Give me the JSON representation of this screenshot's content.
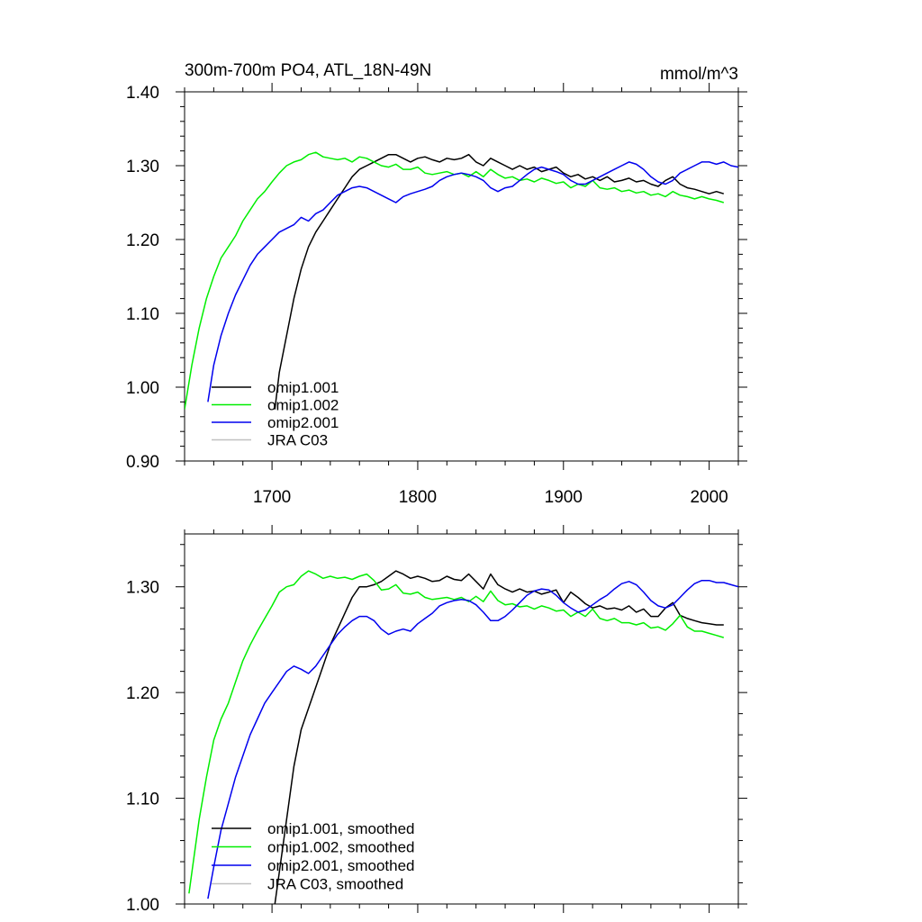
{
  "chart_data": [
    {
      "type": "line",
      "title": "300m-700m PO4, ATL_18N-49N",
      "units": "mmol/m^3",
      "xlim": [
        1640,
        2020
      ],
      "ylim": [
        0.9,
        1.4
      ],
      "xticks": [
        1700,
        1800,
        1900,
        2000
      ],
      "xtick_labels": [
        "1700",
        "1800",
        "1900",
        "2000"
      ],
      "yticks": [
        0.9,
        1.0,
        1.1,
        1.2,
        1.3,
        1.4
      ],
      "ytick_labels": [
        "0.90",
        "1.00",
        "1.10",
        "1.20",
        "1.30",
        "1.40"
      ],
      "legend_position": "bottom-left",
      "series": [
        {
          "name": "omip1.001",
          "color": "#000000",
          "x": [
            1702,
            1705,
            1710,
            1715,
            1720,
            1725,
            1730,
            1735,
            1740,
            1745,
            1750,
            1755,
            1760,
            1765,
            1770,
            1775,
            1780,
            1785,
            1790,
            1795,
            1800,
            1805,
            1810,
            1815,
            1820,
            1825,
            1830,
            1835,
            1840,
            1845,
            1850,
            1855,
            1860,
            1865,
            1870,
            1875,
            1880,
            1885,
            1890,
            1895,
            1900,
            1905,
            1910,
            1915,
            1920,
            1925,
            1930,
            1935,
            1940,
            1945,
            1950,
            1955,
            1960,
            1965,
            1970,
            1975,
            1980,
            1985,
            1990,
            1995,
            2000,
            2005,
            2010
          ],
          "y": [
            0.97,
            1.02,
            1.07,
            1.12,
            1.16,
            1.19,
            1.21,
            1.225,
            1.24,
            1.255,
            1.27,
            1.285,
            1.295,
            1.3,
            1.305,
            1.31,
            1.315,
            1.315,
            1.31,
            1.305,
            1.31,
            1.312,
            1.308,
            1.305,
            1.31,
            1.308,
            1.31,
            1.315,
            1.305,
            1.3,
            1.31,
            1.305,
            1.3,
            1.295,
            1.3,
            1.295,
            1.298,
            1.292,
            1.295,
            1.298,
            1.29,
            1.285,
            1.288,
            1.282,
            1.285,
            1.28,
            1.285,
            1.278,
            1.28,
            1.283,
            1.278,
            1.28,
            1.275,
            1.272,
            1.28,
            1.285,
            1.275,
            1.27,
            1.268,
            1.265,
            1.262,
            1.265,
            1.262
          ]
        },
        {
          "name": "omip1.002",
          "color": "#00ee00",
          "x": [
            1640,
            1645,
            1650,
            1655,
            1660,
            1665,
            1670,
            1675,
            1680,
            1685,
            1690,
            1695,
            1700,
            1705,
            1710,
            1715,
            1720,
            1725,
            1730,
            1735,
            1740,
            1745,
            1750,
            1755,
            1760,
            1765,
            1770,
            1775,
            1780,
            1785,
            1790,
            1795,
            1800,
            1805,
            1810,
            1815,
            1820,
            1825,
            1830,
            1835,
            1840,
            1845,
            1850,
            1855,
            1860,
            1865,
            1870,
            1875,
            1880,
            1885,
            1890,
            1895,
            1900,
            1905,
            1910,
            1915,
            1920,
            1925,
            1930,
            1935,
            1940,
            1945,
            1950,
            1955,
            1960,
            1965,
            1970,
            1975,
            1980,
            1985,
            1990,
            1995,
            2000,
            2005,
            2010
          ],
          "y": [
            0.97,
            1.03,
            1.08,
            1.12,
            1.15,
            1.175,
            1.19,
            1.205,
            1.225,
            1.24,
            1.255,
            1.265,
            1.278,
            1.29,
            1.3,
            1.305,
            1.308,
            1.315,
            1.318,
            1.312,
            1.31,
            1.308,
            1.31,
            1.305,
            1.312,
            1.31,
            1.305,
            1.3,
            1.298,
            1.302,
            1.295,
            1.295,
            1.298,
            1.29,
            1.288,
            1.29,
            1.292,
            1.288,
            1.29,
            1.285,
            1.292,
            1.285,
            1.295,
            1.288,
            1.283,
            1.285,
            1.28,
            1.282,
            1.278,
            1.283,
            1.28,
            1.276,
            1.278,
            1.27,
            1.275,
            1.272,
            1.28,
            1.27,
            1.268,
            1.27,
            1.265,
            1.267,
            1.263,
            1.265,
            1.26,
            1.262,
            1.258,
            1.265,
            1.26,
            1.258,
            1.255,
            1.258,
            1.255,
            1.253,
            1.25
          ]
        },
        {
          "name": "omip2.001",
          "color": "#0000ee",
          "x": [
            1656,
            1660,
            1665,
            1670,
            1675,
            1680,
            1685,
            1690,
            1695,
            1700,
            1705,
            1710,
            1715,
            1720,
            1725,
            1730,
            1735,
            1740,
            1745,
            1750,
            1755,
            1760,
            1765,
            1770,
            1775,
            1780,
            1785,
            1790,
            1795,
            1800,
            1805,
            1810,
            1815,
            1820,
            1825,
            1830,
            1835,
            1840,
            1845,
            1850,
            1855,
            1860,
            1865,
            1870,
            1875,
            1880,
            1885,
            1890,
            1895,
            1900,
            1905,
            1910,
            1915,
            1920,
            1925,
            1930,
            1935,
            1940,
            1945,
            1950,
            1955,
            1960,
            1965,
            1970,
            1975,
            1980,
            1985,
            1990,
            1995,
            2000,
            2005,
            2010,
            2015,
            2020
          ],
          "y": [
            0.98,
            1.03,
            1.07,
            1.1,
            1.125,
            1.145,
            1.165,
            1.18,
            1.19,
            1.2,
            1.21,
            1.215,
            1.22,
            1.23,
            1.225,
            1.235,
            1.24,
            1.25,
            1.26,
            1.265,
            1.27,
            1.272,
            1.27,
            1.265,
            1.26,
            1.255,
            1.25,
            1.258,
            1.262,
            1.265,
            1.268,
            1.272,
            1.28,
            1.285,
            1.288,
            1.29,
            1.288,
            1.285,
            1.28,
            1.27,
            1.265,
            1.27,
            1.272,
            1.28,
            1.288,
            1.295,
            1.298,
            1.295,
            1.292,
            1.288,
            1.28,
            1.275,
            1.275,
            1.28,
            1.285,
            1.29,
            1.295,
            1.3,
            1.305,
            1.302,
            1.295,
            1.285,
            1.278,
            1.275,
            1.28,
            1.29,
            1.295,
            1.3,
            1.305,
            1.305,
            1.302,
            1.305,
            1.3,
            1.298
          ]
        },
        {
          "name": "JRA C03",
          "color": "#c0c0c0",
          "x": [],
          "y": []
        }
      ]
    },
    {
      "type": "line",
      "title": "",
      "xlim": [
        1640,
        2020
      ],
      "ylim": [
        1.0,
        1.35
      ],
      "xticks": [
        1700,
        1800,
        1900,
        2000
      ],
      "xtick_labels": [],
      "yticks": [
        1.0,
        1.1,
        1.2,
        1.3
      ],
      "ytick_labels": [
        "1.00",
        "1.10",
        "1.20",
        "1.30"
      ],
      "legend_position": "bottom-left",
      "series": [
        {
          "name": "omip1.001, smoothed",
          "color": "#000000",
          "x": [
            1702,
            1705,
            1710,
            1715,
            1720,
            1725,
            1730,
            1735,
            1740,
            1745,
            1750,
            1755,
            1760,
            1765,
            1770,
            1775,
            1780,
            1785,
            1790,
            1795,
            1800,
            1805,
            1810,
            1815,
            1820,
            1825,
            1830,
            1835,
            1840,
            1845,
            1850,
            1855,
            1860,
            1865,
            1870,
            1875,
            1880,
            1885,
            1890,
            1895,
            1900,
            1905,
            1910,
            1915,
            1920,
            1925,
            1930,
            1935,
            1940,
            1945,
            1950,
            1955,
            1960,
            1965,
            1970,
            1975,
            1980,
            1985,
            1990,
            1995,
            2000,
            2005,
            2010
          ],
          "y": [
            1.0,
            1.03,
            1.08,
            1.13,
            1.165,
            1.185,
            1.205,
            1.225,
            1.245,
            1.26,
            1.275,
            1.29,
            1.3,
            1.3,
            1.302,
            1.305,
            1.31,
            1.315,
            1.312,
            1.308,
            1.31,
            1.308,
            1.305,
            1.306,
            1.31,
            1.307,
            1.306,
            1.312,
            1.305,
            1.298,
            1.312,
            1.302,
            1.298,
            1.295,
            1.298,
            1.295,
            1.296,
            1.293,
            1.295,
            1.297,
            1.285,
            1.295,
            1.29,
            1.284,
            1.28,
            1.282,
            1.279,
            1.28,
            1.278,
            1.282,
            1.276,
            1.279,
            1.272,
            1.272,
            1.28,
            1.285,
            1.273,
            1.27,
            1.268,
            1.266,
            1.265,
            1.264,
            1.264
          ]
        },
        {
          "name": "omip1.002, smoothed",
          "color": "#00ee00",
          "x": [
            1643,
            1645,
            1650,
            1655,
            1660,
            1665,
            1670,
            1675,
            1680,
            1685,
            1690,
            1695,
            1700,
            1705,
            1710,
            1715,
            1720,
            1725,
            1730,
            1735,
            1740,
            1745,
            1750,
            1755,
            1760,
            1765,
            1770,
            1775,
            1780,
            1785,
            1790,
            1795,
            1800,
            1805,
            1810,
            1815,
            1820,
            1825,
            1830,
            1835,
            1840,
            1845,
            1850,
            1855,
            1860,
            1865,
            1870,
            1875,
            1880,
            1885,
            1890,
            1895,
            1900,
            1905,
            1910,
            1915,
            1920,
            1925,
            1930,
            1935,
            1940,
            1945,
            1950,
            1955,
            1960,
            1965,
            1970,
            1975,
            1980,
            1985,
            1990,
            1995,
            2000,
            2005,
            2010
          ],
          "y": [
            1.01,
            1.03,
            1.08,
            1.12,
            1.155,
            1.175,
            1.19,
            1.21,
            1.23,
            1.245,
            1.258,
            1.27,
            1.282,
            1.295,
            1.3,
            1.302,
            1.31,
            1.315,
            1.312,
            1.308,
            1.31,
            1.308,
            1.309,
            1.307,
            1.31,
            1.312,
            1.306,
            1.297,
            1.298,
            1.302,
            1.294,
            1.293,
            1.295,
            1.29,
            1.288,
            1.289,
            1.29,
            1.288,
            1.29,
            1.286,
            1.291,
            1.286,
            1.296,
            1.287,
            1.283,
            1.284,
            1.281,
            1.282,
            1.279,
            1.282,
            1.28,
            1.277,
            1.278,
            1.272,
            1.276,
            1.272,
            1.279,
            1.27,
            1.268,
            1.27,
            1.266,
            1.266,
            1.264,
            1.266,
            1.261,
            1.262,
            1.259,
            1.265,
            1.273,
            1.262,
            1.258,
            1.258,
            1.256,
            1.254,
            1.252
          ]
        },
        {
          "name": "omip2.001, smoothed",
          "color": "#0000ee",
          "x": [
            1656,
            1660,
            1665,
            1670,
            1675,
            1680,
            1685,
            1690,
            1695,
            1700,
            1705,
            1710,
            1715,
            1720,
            1725,
            1730,
            1735,
            1740,
            1745,
            1750,
            1755,
            1760,
            1765,
            1770,
            1775,
            1780,
            1785,
            1790,
            1795,
            1800,
            1805,
            1810,
            1815,
            1820,
            1825,
            1830,
            1835,
            1840,
            1845,
            1850,
            1855,
            1860,
            1865,
            1870,
            1875,
            1880,
            1885,
            1890,
            1895,
            1900,
            1905,
            1910,
            1915,
            1920,
            1925,
            1930,
            1935,
            1940,
            1945,
            1950,
            1955,
            1960,
            1965,
            1970,
            1975,
            1980,
            1985,
            1990,
            1995,
            2000,
            2005,
            2010,
            2015,
            2020
          ],
          "y": [
            1.005,
            1.035,
            1.07,
            1.095,
            1.12,
            1.14,
            1.16,
            1.175,
            1.19,
            1.2,
            1.21,
            1.22,
            1.225,
            1.222,
            1.218,
            1.225,
            1.235,
            1.245,
            1.255,
            1.262,
            1.268,
            1.272,
            1.272,
            1.268,
            1.26,
            1.255,
            1.258,
            1.26,
            1.258,
            1.265,
            1.27,
            1.275,
            1.282,
            1.285,
            1.287,
            1.288,
            1.287,
            1.283,
            1.276,
            1.268,
            1.268,
            1.272,
            1.278,
            1.285,
            1.292,
            1.296,
            1.298,
            1.297,
            1.292,
            1.285,
            1.28,
            1.276,
            1.278,
            1.283,
            1.288,
            1.292,
            1.298,
            1.303,
            1.305,
            1.302,
            1.295,
            1.287,
            1.282,
            1.28,
            1.283,
            1.29,
            1.297,
            1.303,
            1.306,
            1.306,
            1.304,
            1.304,
            1.302,
            1.3
          ]
        },
        {
          "name": "JRA C03, smoothed",
          "color": "#c0c0c0",
          "x": [],
          "y": []
        }
      ]
    }
  ]
}
